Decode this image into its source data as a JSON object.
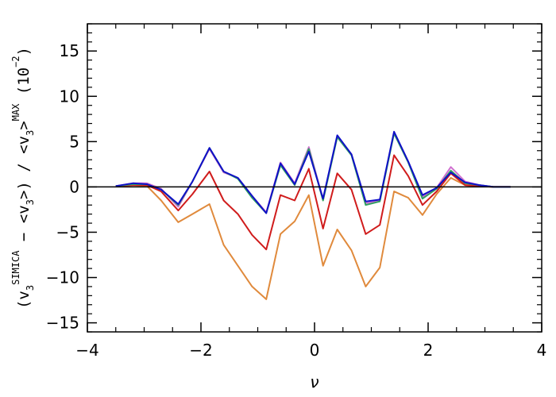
{
  "chart_data": {
    "type": "line",
    "xlabel": "ν",
    "ylabel": {
      "prefix": "(v",
      "sub1": "3",
      "sup1": "SIMICA",
      "middle": " − <v",
      "sub2": "3",
      "middle2": ">) / <v",
      "sub3": "3",
      "close": ">",
      "sup2": "MAX",
      "tail": " (10",
      "sup3": "−2",
      "end": ")"
    },
    "xlim": [
      -4,
      4
    ],
    "ylim": [
      -16,
      18
    ],
    "xticks": [
      -4,
      -2,
      0,
      2,
      4
    ],
    "xtick_labels": [
      "−4",
      "−2",
      "0",
      "2",
      "4"
    ],
    "yticks": [
      -15,
      -10,
      -5,
      0,
      5,
      10,
      15
    ],
    "ytick_labels": [
      "−15",
      "−10",
      "−5",
      "0",
      "5",
      "10",
      "15"
    ],
    "hline_y": 0,
    "grid": false,
    "x": [
      -3.5,
      -3.2,
      -2.95,
      -2.7,
      -2.4,
      -2.15,
      -1.85,
      -1.6,
      -1.35,
      -1.1,
      -0.85,
      -0.6,
      -0.35,
      -0.1,
      0.15,
      0.4,
      0.65,
      0.9,
      1.15,
      1.4,
      1.65,
      1.9,
      2.15,
      2.4,
      2.65,
      2.9,
      3.15,
      3.45
    ],
    "series": [
      {
        "color": "#e08a3c",
        "values": [
          0.1,
          0.2,
          0.1,
          -1.5,
          -3.9,
          -3.0,
          -1.9,
          -6.4,
          -8.7,
          -11.0,
          -12.4,
          -5.2,
          -3.8,
          -0.9,
          -8.7,
          -4.7,
          -7.0,
          -11.0,
          -8.9,
          -0.5,
          -1.2,
          -3.1,
          -0.8,
          1.0,
          0.2,
          0.1,
          0.0,
          0.0
        ]
      },
      {
        "color": "#d01c1c",
        "values": [
          0.1,
          0.2,
          0.2,
          -0.5,
          -2.6,
          -0.8,
          1.7,
          -1.5,
          -3.0,
          -5.3,
          -6.9,
          -0.9,
          -1.5,
          2.0,
          -4.6,
          1.5,
          -0.3,
          -5.2,
          -4.2,
          3.5,
          1.2,
          -2.0,
          -0.5,
          1.5,
          0.2,
          0.1,
          0.0,
          0.0
        ]
      },
      {
        "color": "#d070d0",
        "values": [
          0.1,
          0.4,
          0.4,
          -0.2,
          -2.2,
          0.6,
          4.2,
          1.6,
          1.0,
          -1.0,
          -2.8,
          2.7,
          0.4,
          4.4,
          -1.4,
          5.6,
          3.6,
          -1.8,
          -1.5,
          6.0,
          2.8,
          -1.1,
          -0.1,
          2.2,
          0.6,
          0.2,
          0.0,
          0.0
        ]
      },
      {
        "color": "#30a060",
        "values": [
          0.1,
          0.3,
          0.3,
          -0.3,
          -2.0,
          0.6,
          4.3,
          1.7,
          0.9,
          -1.2,
          -2.9,
          2.4,
          0.2,
          4.2,
          -1.5,
          5.5,
          3.5,
          -2.0,
          -1.6,
          5.9,
          2.7,
          -1.3,
          -0.2,
          1.8,
          0.4,
          0.2,
          0.0,
          0.0
        ]
      },
      {
        "color": "#1010c8",
        "values": [
          0.1,
          0.4,
          0.3,
          -0.3,
          -1.9,
          0.6,
          4.3,
          1.7,
          1.0,
          -1.0,
          -2.9,
          2.6,
          0.3,
          3.9,
          -1.3,
          5.7,
          3.6,
          -1.6,
          -1.4,
          6.1,
          2.8,
          -0.9,
          -0.1,
          1.6,
          0.5,
          0.2,
          0.0,
          0.0
        ]
      }
    ]
  }
}
